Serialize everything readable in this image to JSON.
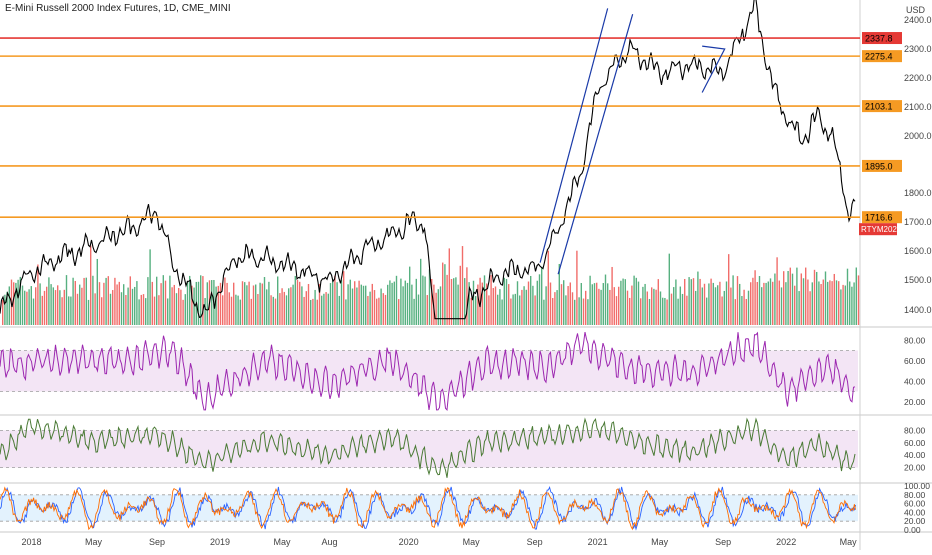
{
  "header": {
    "title": "E-Mini Russell 2000 Index Futures, 1D, CME_MINI",
    "currency": "USD"
  },
  "chart_data": [
    {
      "type": "line",
      "panel": "price",
      "y_ticks": [
        1400,
        1500,
        1600,
        1700,
        1800,
        2000,
        2100,
        2200,
        2300,
        2400
      ],
      "ylim": [
        1360,
        2470
      ],
      "x_ticks": [
        "2018",
        "May",
        "Sep",
        "2019",
        "May",
        "Aug",
        "2020",
        "May",
        "Sep",
        "2021",
        "May",
        "Sep",
        "2022",
        "May"
      ],
      "horizontal_levels": [
        {
          "value": 2337.8,
          "label": "2337.8",
          "color": "#e53935"
        },
        {
          "value": 2275.4,
          "label": "2275.4",
          "color": "#f59a23"
        },
        {
          "value": 2103.1,
          "label": "2103.1",
          "color": "#f59a23"
        },
        {
          "value": 1895.0,
          "label": "1895.0",
          "color": "#f59a23"
        },
        {
          "value": 1716.6,
          "label": "1716.6",
          "color": "#f59a23"
        }
      ],
      "current_label": {
        "text": "RTYM2022",
        "color": "#e53935"
      },
      "series": [
        {
          "color": "#000000",
          "x": [
            "2017-11",
            "2018-01",
            "2018-03",
            "2018-05",
            "2018-07",
            "2018-09",
            "2018-10",
            "2018-12",
            "2019-02",
            "2019-04",
            "2019-06",
            "2019-08",
            "2019-10",
            "2019-12",
            "2020-01",
            "2020-02",
            "2020-03",
            "2020-05",
            "2020-07",
            "2020-09",
            "2020-10",
            "2020-12",
            "2021-01",
            "2021-03",
            "2021-05",
            "2021-07",
            "2021-09",
            "2021-11",
            "2021-12",
            "2022-01",
            "2022-02",
            "2022-03",
            "2022-04",
            "2022-05"
          ],
          "values": [
            1390,
            1530,
            1580,
            1620,
            1670,
            1735,
            1560,
            1380,
            1580,
            1570,
            1535,
            1500,
            1600,
            1660,
            1695,
            1690,
            1200,
            1440,
            1520,
            1540,
            1610,
            1880,
            2160,
            2300,
            2220,
            2240,
            2220,
            2450,
            2200,
            2060,
            1980,
            2070,
            2000,
            1740
          ]
        }
      ],
      "annotations": [
        {
          "type": "channel",
          "color": "#1a3aa8",
          "start": "2020-10",
          "end": "2021-01"
        },
        {
          "type": "triangle",
          "color": "#1a3aa8",
          "start": "2021-08",
          "end": "2021-11"
        }
      ]
    },
    {
      "type": "bar",
      "panel": "volume",
      "colors": {
        "up": "#3aa26a",
        "down": "#ef5350"
      }
    },
    {
      "type": "line",
      "panel": "oscillator-1",
      "color": "#9c27b0",
      "band": [
        30,
        70
      ],
      "y_ticks": [
        20,
        40,
        60,
        80
      ],
      "x": [
        "2017-11",
        "2018-03",
        "2018-07",
        "2018-10",
        "2018-12",
        "2019-04",
        "2019-08",
        "2019-12",
        "2020-03",
        "2020-06",
        "2020-10",
        "2020-12",
        "2021-03",
        "2021-07",
        "2021-11",
        "2022-01",
        "2022-04",
        "2022-05"
      ],
      "values": [
        55,
        62,
        58,
        70,
        22,
        60,
        38,
        62,
        18,
        58,
        55,
        78,
        52,
        48,
        78,
        30,
        55,
        28
      ]
    },
    {
      "type": "line",
      "panel": "oscillator-2",
      "color": "#4a7a35",
      "band": [
        20,
        80
      ],
      "y_ticks": [
        20,
        40,
        60,
        80
      ],
      "x": [
        "2017-11",
        "2018-01",
        "2018-05",
        "2018-09",
        "2018-12",
        "2019-04",
        "2019-08",
        "2019-12",
        "2020-03",
        "2020-06",
        "2020-10",
        "2021-01",
        "2021-04",
        "2021-07",
        "2021-11",
        "2022-01",
        "2022-03",
        "2022-05"
      ],
      "values": [
        40,
        88,
        60,
        75,
        28,
        65,
        40,
        70,
        15,
        62,
        70,
        85,
        58,
        45,
        85,
        30,
        62,
        25
      ]
    },
    {
      "type": "line",
      "panel": "oscillator-3",
      "band": [
        20,
        80
      ],
      "y_ticks": [
        0,
        20,
        40,
        60,
        80,
        100
      ],
      "series": [
        {
          "color": "#2962ff"
        },
        {
          "color": "#ff6d00"
        }
      ]
    }
  ],
  "oscillator_labels": {
    "osc1": [
      "80.00",
      "60.00",
      "40.00",
      "20.00"
    ],
    "osc2": [
      "80.00",
      "60.00",
      "40.00",
      "20.00"
    ],
    "osc3": [
      "100.00",
      "80.00",
      "60.00",
      "40.00",
      "20.00",
      "0.00"
    ]
  }
}
